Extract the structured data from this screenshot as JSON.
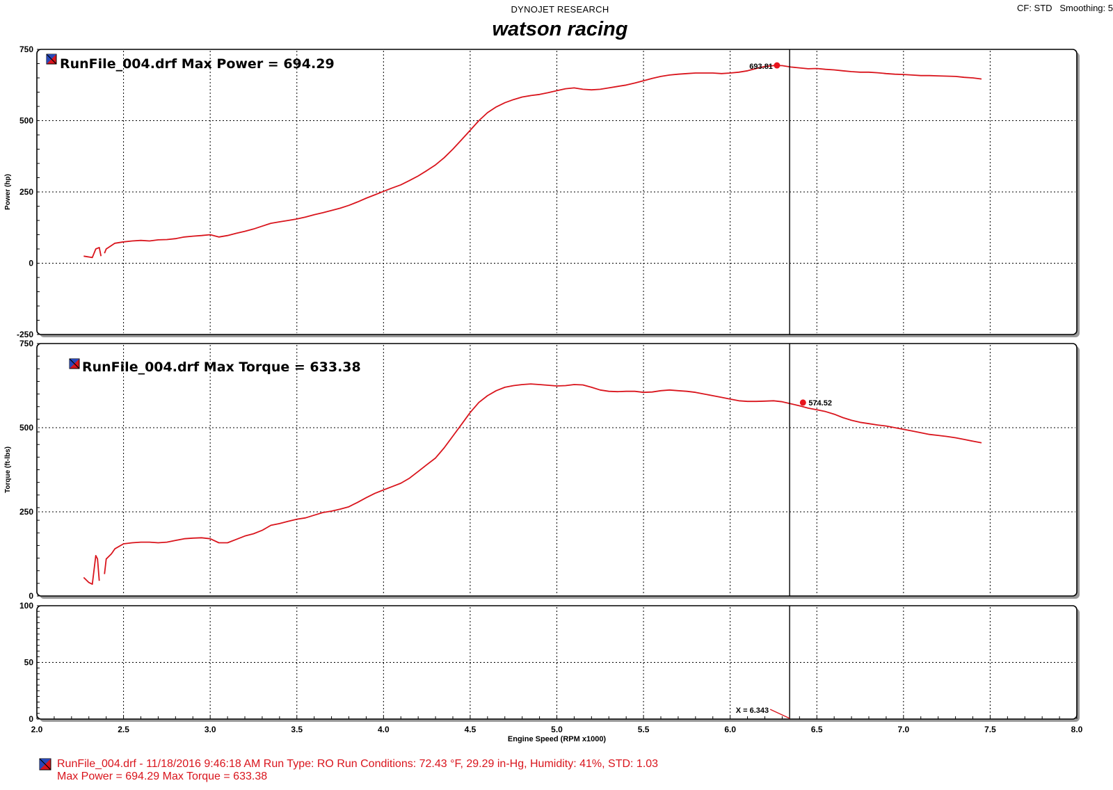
{
  "header": {
    "brand": "DYNOJET RESEARCH",
    "title": "watson racing",
    "cf_smoothing": "CF: STD   Smoothing: 5"
  },
  "colors": {
    "curve": "#d9141c",
    "marker": "#e8141c",
    "text": "#000000"
  },
  "chart_data": [
    {
      "type": "line",
      "name": "power",
      "ylabel": "Power (hp)",
      "ylim": [
        -250,
        750
      ],
      "yticks": [
        "750",
        "500",
        "250",
        "0",
        "-250"
      ],
      "xlim": [
        2.0,
        8.0
      ],
      "legend": "RunFile_004.drf Max Power = 694.29",
      "cursor_x": 6.343,
      "marker": {
        "x": 6.27,
        "y": 693.81,
        "label": "693.81"
      },
      "grid": true,
      "series": [
        {
          "x": [
            2.27,
            2.32,
            2.34,
            2.36,
            2.37,
            2.38,
            2.39,
            2.4,
            2.43,
            2.45,
            2.5,
            2.55,
            2.6,
            2.65,
            2.7,
            2.75,
            2.8,
            2.85,
            2.9,
            2.95,
            3.0,
            3.05,
            3.1,
            3.15,
            3.2,
            3.25,
            3.3,
            3.35,
            3.4,
            3.45,
            3.5,
            3.55,
            3.6,
            3.65,
            3.7,
            3.75,
            3.8,
            3.85,
            3.9,
            3.95,
            4.0,
            4.05,
            4.1,
            4.15,
            4.2,
            4.25,
            4.3,
            4.35,
            4.4,
            4.45,
            4.5,
            4.55,
            4.6,
            4.65,
            4.7,
            4.75,
            4.8,
            4.85,
            4.9,
            4.95,
            5.0,
            5.05,
            5.1,
            5.15,
            5.2,
            5.25,
            5.3,
            5.35,
            5.4,
            5.45,
            5.5,
            5.55,
            5.6,
            5.65,
            5.7,
            5.75,
            5.8,
            5.85,
            5.9,
            5.95,
            6.0,
            6.05,
            6.1,
            6.15,
            6.2,
            6.25,
            6.3,
            6.35,
            6.4,
            6.45,
            6.5,
            6.55,
            6.6,
            6.65,
            6.7,
            6.75,
            6.8,
            6.85,
            6.9,
            6.95,
            7.0,
            7.05,
            7.1,
            7.15,
            7.2,
            7.25,
            7.3,
            7.35,
            7.4,
            7.45
          ],
          "y": [
            25,
            20,
            50,
            55,
            25,
            null,
            35,
            50,
            62,
            70,
            75,
            78,
            80,
            78,
            82,
            83,
            86,
            92,
            95,
            97,
            100,
            92,
            97,
            105,
            112,
            120,
            130,
            140,
            145,
            150,
            155,
            162,
            170,
            177,
            185,
            193,
            203,
            215,
            228,
            240,
            252,
            264,
            275,
            290,
            306,
            325,
            345,
            370,
            400,
            433,
            466,
            500,
            528,
            548,
            563,
            574,
            583,
            588,
            592,
            598,
            605,
            612,
            615,
            610,
            608,
            610,
            615,
            620,
            625,
            632,
            640,
            648,
            655,
            660,
            663,
            665,
            667,
            667,
            667,
            665,
            667,
            670,
            675,
            683,
            690,
            693,
            693,
            688,
            685,
            682,
            683,
            680,
            678,
            675,
            672,
            670,
            670,
            668,
            665,
            663,
            662,
            660,
            658,
            658,
            657,
            656,
            655,
            652,
            650,
            646
          ]
        }
      ]
    },
    {
      "type": "line",
      "name": "torque",
      "ylabel": "Torque (ft-lbs)",
      "ylim": [
        0,
        750
      ],
      "yticks": [
        "750",
        "500",
        "250",
        "0"
      ],
      "xlim": [
        2.0,
        8.0
      ],
      "legend": "RunFile_004.drf Max Torque = 633.38",
      "cursor_x": 6.343,
      "marker": {
        "x": 6.42,
        "y": 574.52,
        "label": "574.52"
      },
      "grid": true,
      "series": [
        {
          "x": [
            2.27,
            2.3,
            2.32,
            2.34,
            2.35,
            2.36,
            2.37,
            2.38,
            2.39,
            2.4,
            2.43,
            2.45,
            2.5,
            2.55,
            2.6,
            2.65,
            2.7,
            2.75,
            2.8,
            2.85,
            2.9,
            2.95,
            3.0,
            3.05,
            3.1,
            3.15,
            3.2,
            3.25,
            3.3,
            3.35,
            3.4,
            3.45,
            3.5,
            3.55,
            3.6,
            3.65,
            3.7,
            3.75,
            3.8,
            3.85,
            3.9,
            3.95,
            4.0,
            4.05,
            4.1,
            4.15,
            4.2,
            4.25,
            4.3,
            4.35,
            4.4,
            4.45,
            4.5,
            4.55,
            4.6,
            4.65,
            4.7,
            4.75,
            4.8,
            4.85,
            4.9,
            4.95,
            5.0,
            5.05,
            5.1,
            5.15,
            5.2,
            5.25,
            5.3,
            5.35,
            5.4,
            5.45,
            5.5,
            5.55,
            5.6,
            5.65,
            5.7,
            5.75,
            5.8,
            5.85,
            5.9,
            5.95,
            6.0,
            6.05,
            6.1,
            6.15,
            6.2,
            6.25,
            6.3,
            6.35,
            6.4,
            6.45,
            6.5,
            6.55,
            6.6,
            6.65,
            6.7,
            6.75,
            6.8,
            6.85,
            6.9,
            6.95,
            7.0,
            7.05,
            7.1,
            7.15,
            7.2,
            7.25,
            7.3,
            7.35,
            7.4,
            7.45
          ],
          "y": [
            55,
            40,
            35,
            120,
            110,
            45,
            null,
            null,
            65,
            110,
            125,
            140,
            155,
            158,
            160,
            160,
            158,
            160,
            165,
            170,
            172,
            173,
            170,
            158,
            158,
            168,
            178,
            185,
            195,
            210,
            215,
            222,
            228,
            232,
            240,
            248,
            252,
            258,
            265,
            278,
            292,
            305,
            315,
            325,
            335,
            350,
            370,
            390,
            410,
            440,
            475,
            510,
            545,
            575,
            595,
            610,
            620,
            625,
            628,
            630,
            628,
            626,
            624,
            625,
            628,
            627,
            620,
            612,
            608,
            607,
            608,
            608,
            605,
            606,
            610,
            612,
            610,
            608,
            605,
            600,
            595,
            590,
            585,
            580,
            578,
            578,
            579,
            580,
            577,
            571,
            565,
            558,
            553,
            548,
            540,
            530,
            522,
            516,
            512,
            508,
            505,
            500,
            495,
            490,
            485,
            480,
            477,
            474,
            470,
            465,
            460,
            455
          ]
        }
      ]
    },
    {
      "type": "line",
      "name": "aux",
      "ylim": [
        0,
        100
      ],
      "yticks": [
        "100",
        "50",
        "0"
      ],
      "xlim": [
        2.0,
        8.0
      ],
      "xlabel": "Engine Speed (RPM x1000)",
      "xticks": [
        "2.0",
        "2.5",
        "3.0",
        "3.5",
        "4.0",
        "4.5",
        "5.0",
        "5.5",
        "6.0",
        "6.5",
        "7.0",
        "7.5",
        "8.0"
      ],
      "cursor_x": 6.343,
      "cursor_label": "X = 6.343",
      "grid": true
    }
  ],
  "footer": {
    "line1": "RunFile_004.drf - 11/18/2016 9:46:18 AM  Run Type: RO  Run Conditions: 72.43 °F, 29.29 in-Hg,  Humidity:  41%, STD: 1.03",
    "line2": "Max Power = 694.29  Max Torque = 633.38"
  }
}
